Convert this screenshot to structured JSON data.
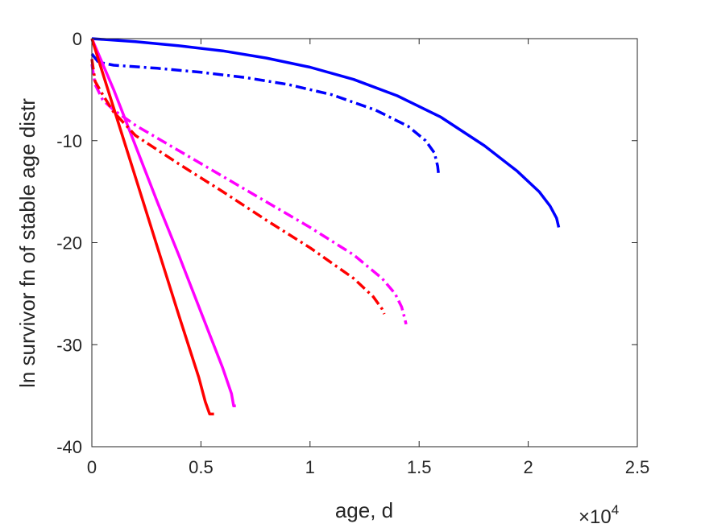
{
  "chart_data": {
    "type": "line",
    "xlabel": "age, d",
    "ylabel": "ln survivor fn of stable age distr",
    "xlim": [
      0,
      25000
    ],
    "ylim": [
      -40,
      0
    ],
    "x_ticks": [
      0,
      5000,
      10000,
      15000,
      20000,
      25000
    ],
    "x_tick_labels": [
      "0",
      "0.5",
      "1",
      "1.5",
      "2",
      "2.5"
    ],
    "x_exponent_base": "×10",
    "x_exponent_power": "4",
    "y_ticks": [
      0,
      -10,
      -20,
      -30,
      -40
    ],
    "y_tick_labels": [
      "0",
      "-10",
      "-20",
      "-30",
      "-40"
    ],
    "grid": false,
    "legend": "none",
    "series": [
      {
        "color": "#0000ff",
        "style": "solid",
        "x": [
          0,
          2000,
          4000,
          6000,
          8000,
          10000,
          12000,
          14000,
          16000,
          18000,
          19500,
          20500,
          21000,
          21300,
          21400
        ],
        "y": [
          0,
          -0.3,
          -0.7,
          -1.2,
          -1.9,
          -2.8,
          -4.0,
          -5.6,
          -7.7,
          -10.5,
          -13.0,
          -15.0,
          -16.4,
          -17.6,
          -18.5
        ]
      },
      {
        "color": "#0000ff",
        "style": "dashdot",
        "x": [
          0,
          300,
          1000,
          3000,
          5000,
          7000,
          9000,
          11000,
          13000,
          14500,
          15300,
          15700,
          15850,
          15900
        ],
        "y": [
          -1.5,
          -2.3,
          -2.6,
          -2.9,
          -3.3,
          -3.8,
          -4.5,
          -5.5,
          -7.0,
          -8.6,
          -10.0,
          -11.2,
          -12.5,
          -13.5
        ]
      },
      {
        "color": "#ff00ff",
        "style": "solid",
        "x": [
          0,
          1000,
          2000,
          3000,
          4000,
          5000,
          6000,
          6400,
          6500,
          6600
        ],
        "y": [
          0,
          -5.0,
          -10.5,
          -16.0,
          -21.3,
          -26.8,
          -32.3,
          -34.8,
          -36.0,
          -36.0
        ]
      },
      {
        "color": "#ff00ff",
        "style": "dashdot",
        "x": [
          0,
          150,
          500,
          1000,
          2000,
          4000,
          6000,
          8000,
          10000,
          12000,
          13300,
          13900,
          14200,
          14350,
          14400
        ],
        "y": [
          -2.5,
          -4.5,
          -6.0,
          -7.0,
          -8.5,
          -11.0,
          -13.5,
          -16.0,
          -18.5,
          -21.2,
          -23.5,
          -25.0,
          -26.3,
          -27.5,
          -28.0
        ]
      },
      {
        "color": "#ff0000",
        "style": "solid",
        "x": [
          0,
          1000,
          2000,
          3000,
          4000,
          4900,
          5200,
          5400,
          5600
        ],
        "y": [
          0,
          -6.8,
          -13.6,
          -20.4,
          -27.2,
          -33.2,
          -35.6,
          -36.8,
          -36.8
        ]
      },
      {
        "color": "#ff0000",
        "style": "dashdot",
        "x": [
          0,
          150,
          500,
          1000,
          2000,
          4000,
          6000,
          8000,
          10000,
          12000,
          12900,
          13300,
          13400
        ],
        "y": [
          -2.0,
          -4.2,
          -5.5,
          -7.2,
          -9.5,
          -12.3,
          -15.0,
          -17.8,
          -20.5,
          -23.5,
          -25.3,
          -26.5,
          -27.0
        ]
      }
    ]
  }
}
